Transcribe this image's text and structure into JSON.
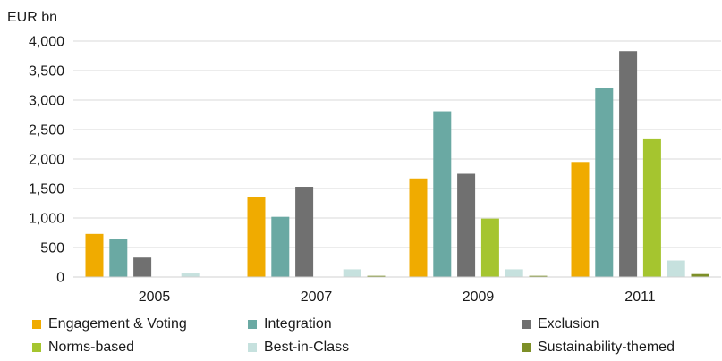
{
  "chart_data": {
    "type": "bar",
    "title": "",
    "ylabel": "EUR bn",
    "xlabel": "",
    "categories": [
      "2005",
      "2007",
      "2009",
      "2011"
    ],
    "ylim": [
      0,
      4000
    ],
    "yticks": [
      0,
      500,
      1000,
      1500,
      2000,
      2500,
      3000,
      3500,
      4000
    ],
    "ytick_labels": [
      "0",
      "500",
      "1,000",
      "1,500",
      "2,000",
      "2,500",
      "3,000",
      "3,500",
      "4,000"
    ],
    "grid": true,
    "legend_position": "bottom",
    "series": [
      {
        "name": "Engagement & Voting",
        "color": "#f0ab00",
        "values": [
          730,
          1350,
          1670,
          1950
        ]
      },
      {
        "name": "Integration",
        "color": "#6aa9a3",
        "values": [
          640,
          1020,
          2810,
          3210
        ]
      },
      {
        "name": "Exclusion",
        "color": "#707070",
        "values": [
          330,
          1530,
          1750,
          3830
        ]
      },
      {
        "name": "Norms-based",
        "color": "#a5c52f",
        "values": [
          0,
          0,
          990,
          2350
        ]
      },
      {
        "name": "Best-in-Class",
        "color": "#c6e1de",
        "values": [
          60,
          130,
          130,
          280
        ]
      },
      {
        "name": "Sustainability-themed",
        "color": "#7d8f27",
        "values": [
          0,
          20,
          20,
          50
        ]
      }
    ]
  }
}
